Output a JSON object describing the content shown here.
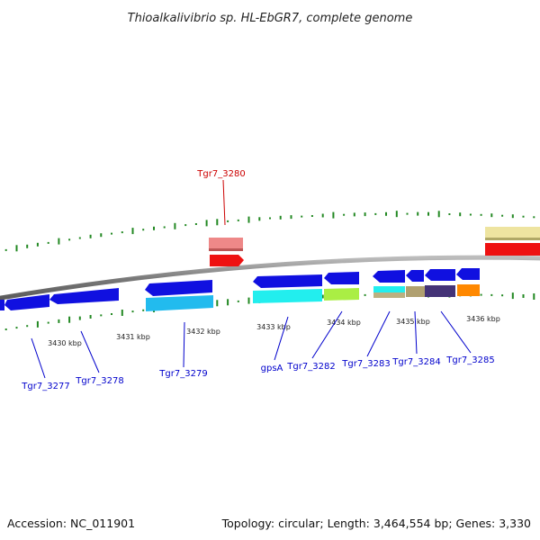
{
  "title": "Thioalkalivibrio sp. HL-EbGR7, complete genome",
  "footer": {
    "accession": "Accession: NC_011901",
    "topology": "Topology: circular; Length: 3,464,554 bp; Genes: 3,330"
  },
  "kbp_labels": [
    "3430 kbp",
    "3431 kbp",
    "3432 kbp",
    "3433 kbp",
    "3434 kbp",
    "3435 kbp",
    "3436 kbp"
  ],
  "gene_labels": [
    {
      "text": "Tgr7_3277",
      "color": "#0000cc"
    },
    {
      "text": "Tgr7_3278",
      "color": "#0000cc"
    },
    {
      "text": "Tgr7_3279",
      "color": "#0000cc"
    },
    {
      "text": "Tgr7_3280",
      "color": "#cc0000"
    },
    {
      "text": "gpsA",
      "color": "#0000cc"
    },
    {
      "text": "Tgr7_3282",
      "color": "#0000cc"
    },
    {
      "text": "Tgr7_3283",
      "color": "#0000cc"
    },
    {
      "text": "Tgr7_3284",
      "color": "#0000cc"
    },
    {
      "text": "Tgr7_3285",
      "color": "#0000cc"
    }
  ],
  "colors": {
    "cds": "#1010e0",
    "rna": "#ee1111",
    "backbone": "#8a8a8a",
    "gc_tick": "#228822"
  }
}
